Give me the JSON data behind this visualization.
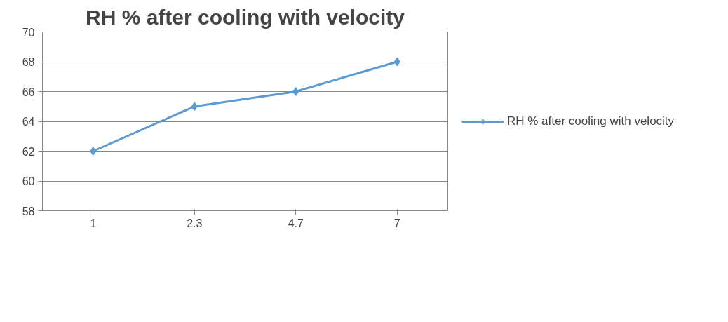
{
  "chart_data": {
    "type": "line",
    "title": "RH % after cooling with velocity",
    "categories": [
      "1",
      "2.3",
      "4.7",
      "7"
    ],
    "series": [
      {
        "name": "RH % after cooling with velocity",
        "color": "#5b9bd5",
        "values": [
          62,
          65,
          66,
          68
        ]
      }
    ],
    "ylim": [
      58,
      70
    ],
    "yticks": [
      58,
      60,
      62,
      64,
      66,
      68,
      70
    ],
    "grid": "y",
    "legend": "right",
    "marker": "diamond",
    "line_style": "solid"
  }
}
